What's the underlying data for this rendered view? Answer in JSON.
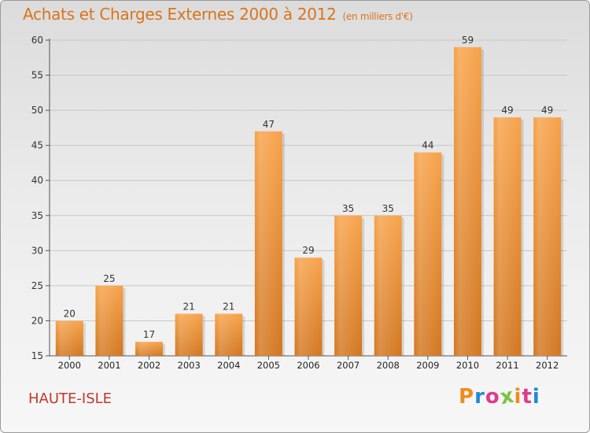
{
  "header": {
    "title": "Achats et Charges Externes 2000 à 2012",
    "subtitle": "(en milliers d'€)"
  },
  "footer": {
    "commune": "HAUTE-ISLE",
    "logo_text": "Proxiti"
  },
  "colors": {
    "bar_top": "#f7a24a",
    "bar_bottom": "#d2761f",
    "title": "#d9741c",
    "commune": "#c0392b",
    "logo": [
      "#f08c1e",
      "#1e8ad6",
      "#e23a8c",
      "#7cc243",
      "#f08c1e",
      "#e23a8c",
      "#1e8ad6"
    ]
  },
  "chart_data": {
    "type": "bar",
    "title": "Achats et Charges Externes 2000 à 2012",
    "subtitle": "(en milliers d'€)",
    "categories": [
      "2000",
      "2001",
      "2002",
      "2003",
      "2004",
      "2005",
      "2006",
      "2007",
      "2008",
      "2009",
      "2010",
      "2011",
      "2012"
    ],
    "values": [
      20,
      25,
      17,
      21,
      21,
      47,
      29,
      35,
      35,
      44,
      59,
      49,
      49
    ],
    "ylim": [
      15,
      60
    ],
    "yticks": [
      15,
      20,
      25,
      30,
      35,
      40,
      45,
      50,
      55,
      60
    ],
    "grid": true,
    "data_labels": true,
    "xlabel": "",
    "ylabel": ""
  }
}
